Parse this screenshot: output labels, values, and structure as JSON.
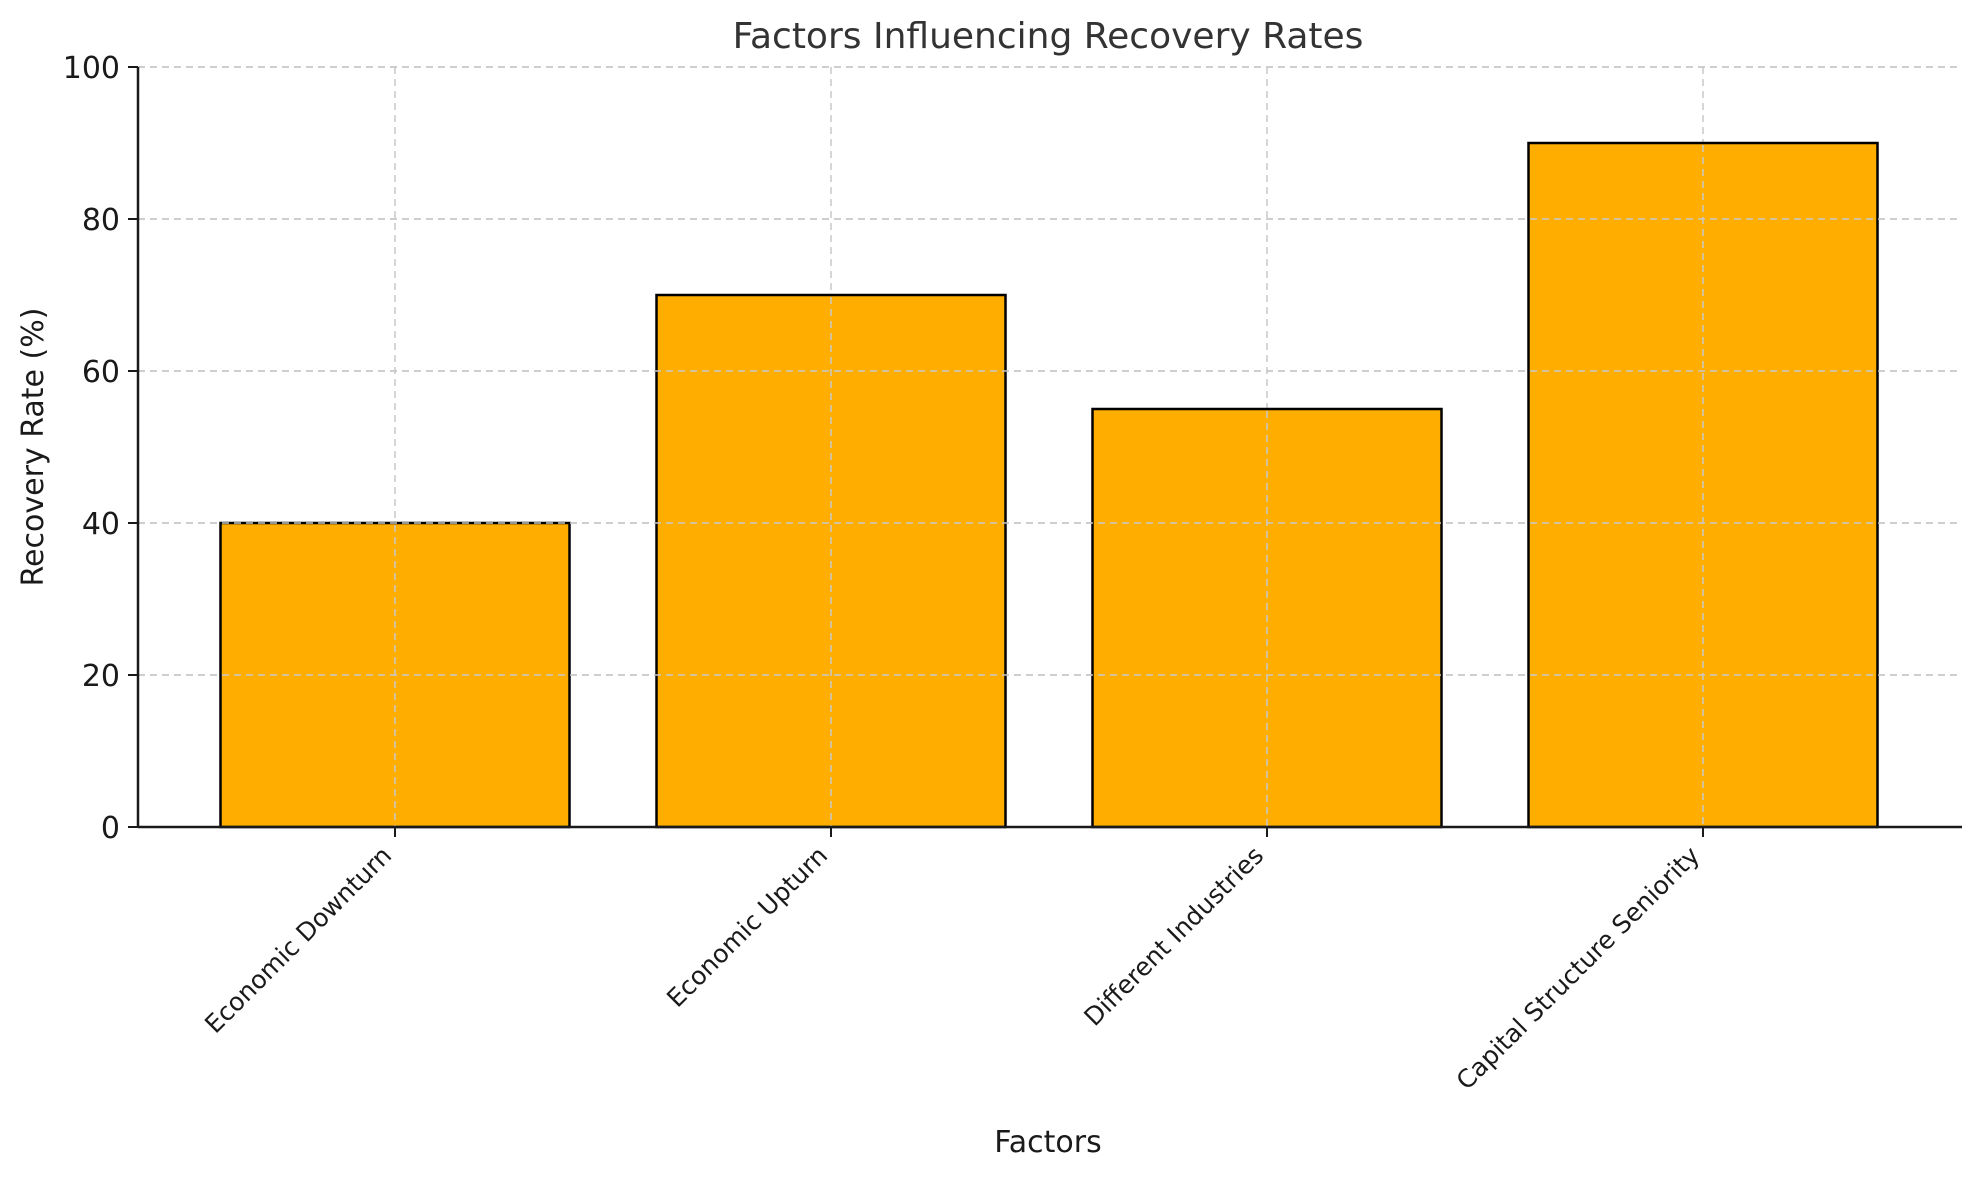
{
  "chart_data": {
    "type": "bar",
    "title": "Factors Influencing Recovery Rates",
    "xlabel": "Factors",
    "ylabel": "Recovery Rate (%)",
    "categories": [
      "Economic Downturn",
      "Economic Upturn",
      "Different Industries",
      "Capital Structure Seniority"
    ],
    "values": [
      40,
      70,
      55,
      90
    ],
    "ylim": [
      0,
      100
    ],
    "yticks": [
      0,
      20,
      40,
      60,
      80,
      100
    ],
    "grid": true,
    "bar_color": "#FFAE00",
    "bar_edge_color": "#000000"
  }
}
